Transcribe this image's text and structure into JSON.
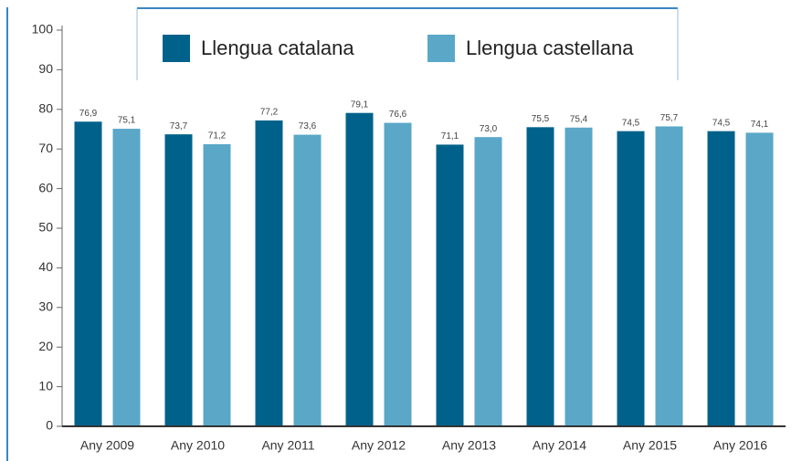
{
  "chart_data": {
    "type": "bar",
    "categories": [
      "Any 2009",
      "Any 2010",
      "Any 2011",
      "Any 2012",
      "Any 2013",
      "Any 2014",
      "Any 2015",
      "Any 2016"
    ],
    "series": [
      {
        "name": "Llengua catalana",
        "color": "#00628a",
        "values": [
          76.9,
          73.7,
          77.2,
          79.1,
          71.1,
          75.5,
          74.5,
          74.5
        ],
        "value_labels": [
          "76,9",
          "73,7",
          "77,2",
          "79,1",
          "71,1",
          "75,5",
          "74,5",
          "74,5"
        ]
      },
      {
        "name": "Llengua castellana",
        "color": "#5aa7c8",
        "values": [
          75.1,
          71.2,
          73.6,
          76.6,
          73.0,
          75.4,
          75.7,
          74.1
        ],
        "value_labels": [
          "75,1",
          "71,2",
          "73,6",
          "76,6",
          "73,0",
          "75,4",
          "75,7",
          "74,1"
        ]
      }
    ],
    "ylim": [
      0,
      100
    ],
    "yticks": [
      0,
      10,
      20,
      30,
      40,
      50,
      60,
      70,
      80,
      90,
      100
    ]
  }
}
